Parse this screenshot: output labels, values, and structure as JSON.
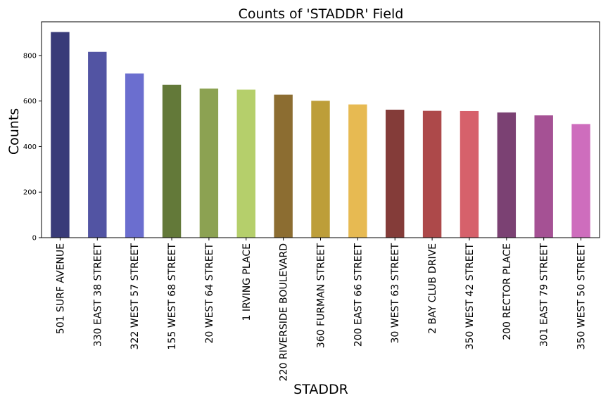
{
  "chart_data": {
    "type": "bar",
    "title": "Counts of 'STADDR' Field",
    "xlabel": "STADDR",
    "ylabel": "Counts",
    "categories": [
      "501 SURF AVENUE",
      "330 EAST 38 STREET",
      "322 WEST 57 STREET",
      "155 WEST 68 STREET",
      "20 WEST 64 STREET",
      "1 IRVING PLACE",
      "220 RIVERSIDE BOULEVARD",
      "360 FURMAN STREET",
      "200 EAST 66 STREET",
      "30 WEST 63 STREET",
      "2 BAY CLUB DRIVE",
      "350 WEST 42 STREET",
      "200 RECTOR PLACE",
      "301 EAST 79 STREET",
      "350 WEST 50 STREET"
    ],
    "values": [
      903,
      816,
      721,
      671,
      655,
      650,
      628,
      601,
      585,
      562,
      557,
      556,
      550,
      537,
      499
    ],
    "colors": [
      "#393b79",
      "#5254a3",
      "#6b6ecf",
      "#637939",
      "#8ca252",
      "#b5cf6b",
      "#8c6d31",
      "#bd9e39",
      "#e7ba52",
      "#843c39",
      "#ad494a",
      "#d6616b",
      "#7b4173",
      "#a55194",
      "#ce6dbd"
    ],
    "ylim": [
      0,
      948
    ],
    "yticks": [
      0,
      200,
      400,
      600,
      800
    ],
    "grid": false,
    "legend": "none"
  }
}
